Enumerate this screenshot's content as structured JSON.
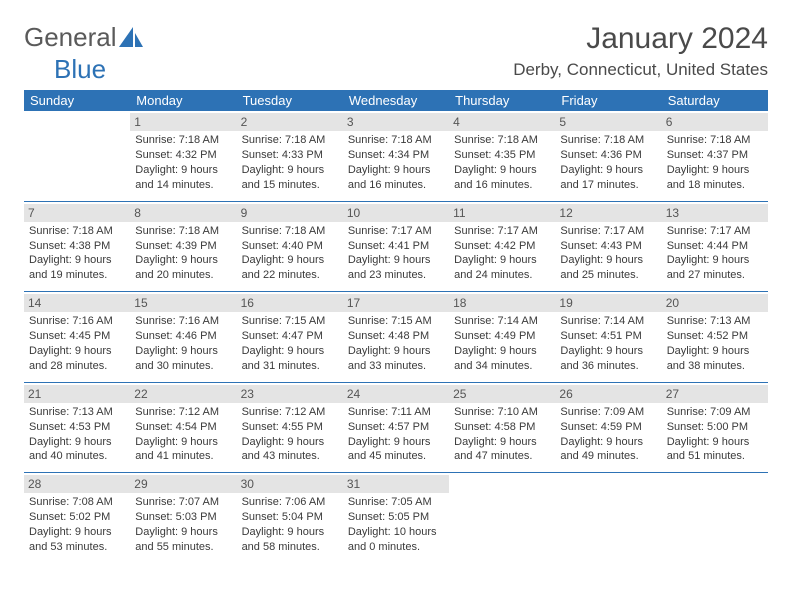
{
  "brand": {
    "part1": "General",
    "part2": "Blue"
  },
  "title": "January 2024",
  "location": "Derby, Connecticut, United States",
  "colors": {
    "header_bg": "#2d72b5",
    "header_text": "#ffffff",
    "daynum_bg": "#e4e4e4",
    "rule": "#2d72b5",
    "text": "#3a3a3a"
  },
  "days": [
    "Sunday",
    "Monday",
    "Tuesday",
    "Wednesday",
    "Thursday",
    "Friday",
    "Saturday"
  ],
  "weeks": [
    [
      null,
      {
        "n": "1",
        "r": "7:18 AM",
        "s": "4:32 PM",
        "d": "9 hours and 14 minutes."
      },
      {
        "n": "2",
        "r": "7:18 AM",
        "s": "4:33 PM",
        "d": "9 hours and 15 minutes."
      },
      {
        "n": "3",
        "r": "7:18 AM",
        "s": "4:34 PM",
        "d": "9 hours and 16 minutes."
      },
      {
        "n": "4",
        "r": "7:18 AM",
        "s": "4:35 PM",
        "d": "9 hours and 16 minutes."
      },
      {
        "n": "5",
        "r": "7:18 AM",
        "s": "4:36 PM",
        "d": "9 hours and 17 minutes."
      },
      {
        "n": "6",
        "r": "7:18 AM",
        "s": "4:37 PM",
        "d": "9 hours and 18 minutes."
      }
    ],
    [
      {
        "n": "7",
        "r": "7:18 AM",
        "s": "4:38 PM",
        "d": "9 hours and 19 minutes."
      },
      {
        "n": "8",
        "r": "7:18 AM",
        "s": "4:39 PM",
        "d": "9 hours and 20 minutes."
      },
      {
        "n": "9",
        "r": "7:18 AM",
        "s": "4:40 PM",
        "d": "9 hours and 22 minutes."
      },
      {
        "n": "10",
        "r": "7:17 AM",
        "s": "4:41 PM",
        "d": "9 hours and 23 minutes."
      },
      {
        "n": "11",
        "r": "7:17 AM",
        "s": "4:42 PM",
        "d": "9 hours and 24 minutes."
      },
      {
        "n": "12",
        "r": "7:17 AM",
        "s": "4:43 PM",
        "d": "9 hours and 25 minutes."
      },
      {
        "n": "13",
        "r": "7:17 AM",
        "s": "4:44 PM",
        "d": "9 hours and 27 minutes."
      }
    ],
    [
      {
        "n": "14",
        "r": "7:16 AM",
        "s": "4:45 PM",
        "d": "9 hours and 28 minutes."
      },
      {
        "n": "15",
        "r": "7:16 AM",
        "s": "4:46 PM",
        "d": "9 hours and 30 minutes."
      },
      {
        "n": "16",
        "r": "7:15 AM",
        "s": "4:47 PM",
        "d": "9 hours and 31 minutes."
      },
      {
        "n": "17",
        "r": "7:15 AM",
        "s": "4:48 PM",
        "d": "9 hours and 33 minutes."
      },
      {
        "n": "18",
        "r": "7:14 AM",
        "s": "4:49 PM",
        "d": "9 hours and 34 minutes."
      },
      {
        "n": "19",
        "r": "7:14 AM",
        "s": "4:51 PM",
        "d": "9 hours and 36 minutes."
      },
      {
        "n": "20",
        "r": "7:13 AM",
        "s": "4:52 PM",
        "d": "9 hours and 38 minutes."
      }
    ],
    [
      {
        "n": "21",
        "r": "7:13 AM",
        "s": "4:53 PM",
        "d": "9 hours and 40 minutes."
      },
      {
        "n": "22",
        "r": "7:12 AM",
        "s": "4:54 PM",
        "d": "9 hours and 41 minutes."
      },
      {
        "n": "23",
        "r": "7:12 AM",
        "s": "4:55 PM",
        "d": "9 hours and 43 minutes."
      },
      {
        "n": "24",
        "r": "7:11 AM",
        "s": "4:57 PM",
        "d": "9 hours and 45 minutes."
      },
      {
        "n": "25",
        "r": "7:10 AM",
        "s": "4:58 PM",
        "d": "9 hours and 47 minutes."
      },
      {
        "n": "26",
        "r": "7:09 AM",
        "s": "4:59 PM",
        "d": "9 hours and 49 minutes."
      },
      {
        "n": "27",
        "r": "7:09 AM",
        "s": "5:00 PM",
        "d": "9 hours and 51 minutes."
      }
    ],
    [
      {
        "n": "28",
        "r": "7:08 AM",
        "s": "5:02 PM",
        "d": "9 hours and 53 minutes."
      },
      {
        "n": "29",
        "r": "7:07 AM",
        "s": "5:03 PM",
        "d": "9 hours and 55 minutes."
      },
      {
        "n": "30",
        "r": "7:06 AM",
        "s": "5:04 PM",
        "d": "9 hours and 58 minutes."
      },
      {
        "n": "31",
        "r": "7:05 AM",
        "s": "5:05 PM",
        "d": "10 hours and 0 minutes."
      },
      null,
      null,
      null
    ]
  ],
  "labels": {
    "sunrise": "Sunrise: ",
    "sunset": "Sunset: ",
    "daylight": "Daylight: "
  }
}
